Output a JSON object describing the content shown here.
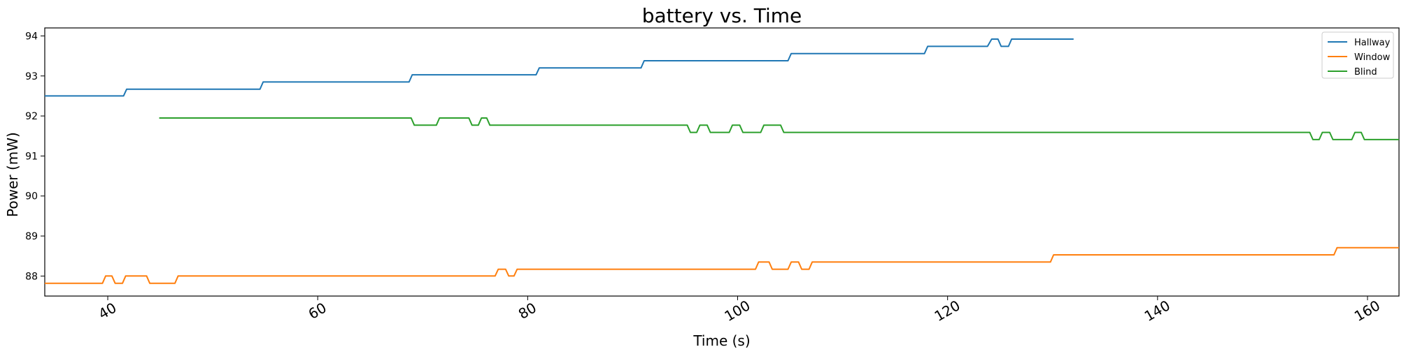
{
  "chart_data": {
    "type": "line",
    "title": "battery vs. Time",
    "xlabel": "Time (s)",
    "ylabel": "Power (mW)",
    "xlim": [
      34,
      163
    ],
    "ylim": [
      87.5,
      94.2
    ],
    "x_ticks": [
      40,
      60,
      80,
      100,
      120,
      140,
      160
    ],
    "y_ticks": [
      88,
      89,
      90,
      91,
      92,
      93,
      94
    ],
    "grid": false,
    "legend_position": "top-right",
    "series": [
      {
        "name": "Hallway",
        "color": "#1f77b4",
        "points": [
          [
            34,
            92.5
          ],
          [
            41.5,
            92.5
          ],
          [
            41.8,
            92.67
          ],
          [
            54.5,
            92.67
          ],
          [
            54.8,
            92.85
          ],
          [
            68.7,
            92.85
          ],
          [
            69,
            93.03
          ],
          [
            80.8,
            93.03
          ],
          [
            81.1,
            93.2
          ],
          [
            90.8,
            93.2
          ],
          [
            91.1,
            93.38
          ],
          [
            104.8,
            93.38
          ],
          [
            105.1,
            93.56
          ],
          [
            117.8,
            93.56
          ],
          [
            118.1,
            93.74
          ],
          [
            123.8,
            93.74
          ],
          [
            124.2,
            93.92
          ],
          [
            124.8,
            93.92
          ],
          [
            125.1,
            93.74
          ],
          [
            125.8,
            93.74
          ],
          [
            126.1,
            93.92
          ],
          [
            132,
            93.92
          ]
        ]
      },
      {
        "name": "Window",
        "color": "#ff7f0e",
        "points": [
          [
            34,
            87.82
          ],
          [
            39.5,
            87.82
          ],
          [
            39.8,
            88.0
          ],
          [
            40.4,
            88.0
          ],
          [
            40.7,
            87.82
          ],
          [
            41.4,
            87.82
          ],
          [
            41.7,
            88.0
          ],
          [
            43.7,
            88.0
          ],
          [
            44.0,
            87.82
          ],
          [
            46.4,
            87.82
          ],
          [
            46.7,
            88.0
          ],
          [
            76.9,
            88.0
          ],
          [
            77.2,
            88.17
          ],
          [
            77.9,
            88.17
          ],
          [
            78.2,
            88.0
          ],
          [
            78.7,
            88.0
          ],
          [
            79.0,
            88.17
          ],
          [
            101.7,
            88.17
          ],
          [
            102,
            88.35
          ],
          [
            103,
            88.35
          ],
          [
            103.3,
            88.17
          ],
          [
            104.8,
            88.17
          ],
          [
            105.1,
            88.35
          ],
          [
            105.8,
            88.35
          ],
          [
            106.1,
            88.17
          ],
          [
            106.8,
            88.17
          ],
          [
            107.1,
            88.35
          ],
          [
            129.8,
            88.35
          ],
          [
            130.1,
            88.53
          ],
          [
            156.8,
            88.53
          ],
          [
            157.1,
            88.71
          ],
          [
            163,
            88.71
          ]
        ]
      },
      {
        "name": "Blind",
        "color": "#2ca02c",
        "points": [
          [
            44.9,
            91.95
          ],
          [
            68.9,
            91.95
          ],
          [
            69.2,
            91.77
          ],
          [
            71.3,
            91.77
          ],
          [
            71.6,
            91.95
          ],
          [
            74.4,
            91.95
          ],
          [
            74.7,
            91.77
          ],
          [
            75.3,
            91.77
          ],
          [
            75.6,
            91.95
          ],
          [
            76.1,
            91.95
          ],
          [
            76.4,
            91.77
          ],
          [
            95.2,
            91.77
          ],
          [
            95.5,
            91.59
          ],
          [
            96.1,
            91.59
          ],
          [
            96.4,
            91.77
          ],
          [
            97.1,
            91.77
          ],
          [
            97.4,
            91.59
          ],
          [
            99.2,
            91.59
          ],
          [
            99.5,
            91.77
          ],
          [
            100.2,
            91.77
          ],
          [
            100.5,
            91.59
          ],
          [
            102.2,
            91.59
          ],
          [
            102.5,
            91.77
          ],
          [
            104.1,
            91.77
          ],
          [
            104.4,
            91.59
          ],
          [
            154.5,
            91.59
          ],
          [
            154.8,
            91.41
          ],
          [
            155.4,
            91.41
          ],
          [
            155.7,
            91.59
          ],
          [
            156.4,
            91.59
          ],
          [
            156.7,
            91.41
          ],
          [
            158.5,
            91.41
          ],
          [
            158.8,
            91.59
          ],
          [
            159.4,
            91.59
          ],
          [
            159.7,
            91.41
          ],
          [
            163,
            91.41
          ]
        ]
      }
    ]
  }
}
